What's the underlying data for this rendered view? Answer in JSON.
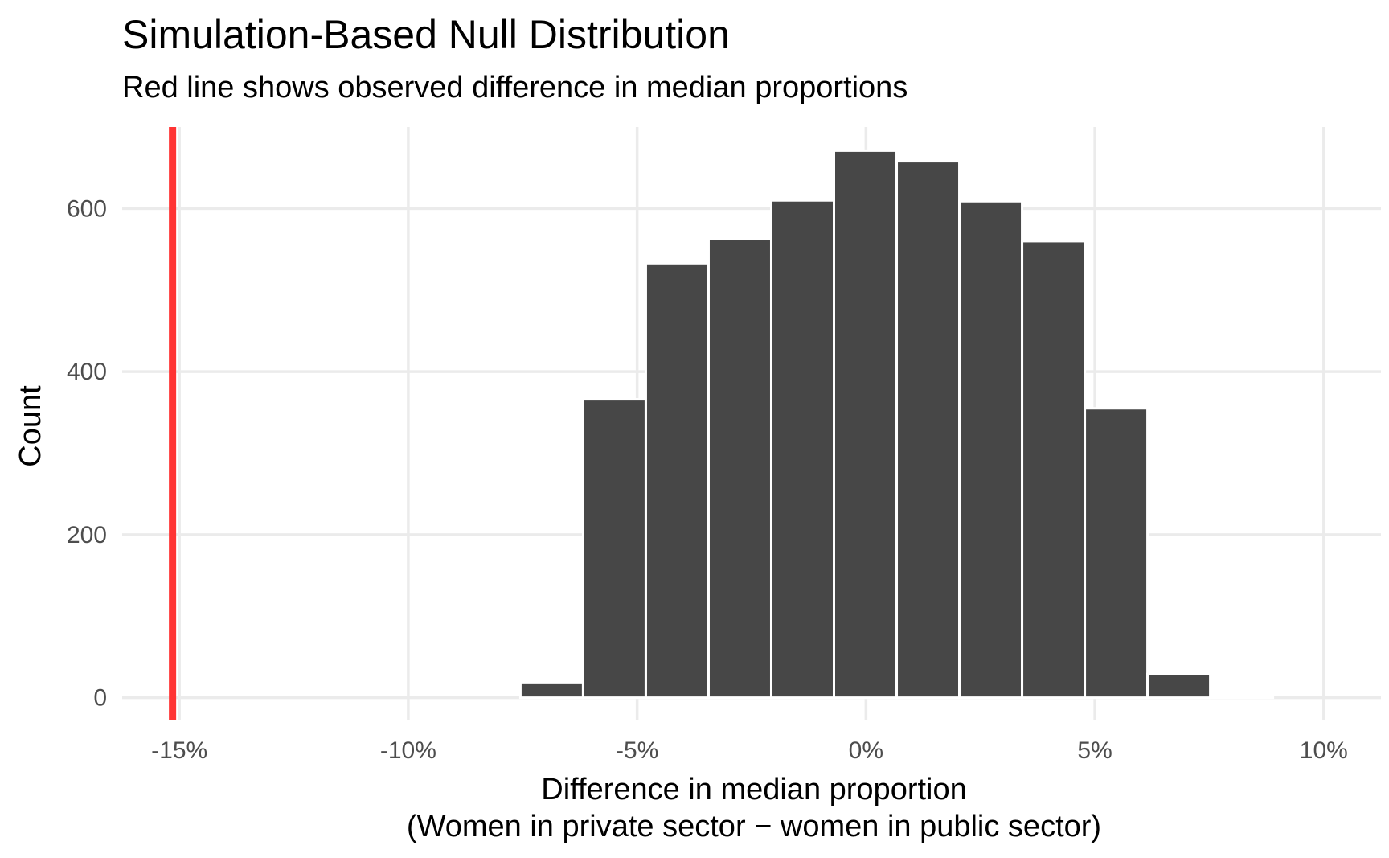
{
  "chart_data": {
    "type": "bar",
    "title": "Simulation-Based Null Distribution",
    "subtitle": "Red line shows observed difference in median proportions",
    "xlabel": "Difference in median proportion",
    "xlabel_line2": "(Women in private sector − women in public sector)",
    "ylabel": "Count",
    "xlim": [
      -0.1625,
      0.1125
    ],
    "ylim": [
      -28,
      700
    ],
    "x_ticks": [
      {
        "value": -0.15,
        "label": "-15%"
      },
      {
        "value": -0.1,
        "label": "-10%"
      },
      {
        "value": -0.05,
        "label": "-5%"
      },
      {
        "value": 0.0,
        "label": "0%"
      },
      {
        "value": 0.05,
        "label": "5%"
      },
      {
        "value": 0.1,
        "label": "10%"
      }
    ],
    "y_ticks": [
      {
        "value": 0,
        "label": "0"
      },
      {
        "value": 200,
        "label": "200"
      },
      {
        "value": 400,
        "label": "400"
      },
      {
        "value": 600,
        "label": "600"
      }
    ],
    "grid": true,
    "bars": [
      {
        "x0": -0.0755,
        "x1": -0.0618,
        "count": 19
      },
      {
        "x0": -0.0618,
        "x1": -0.0481,
        "count": 366
      },
      {
        "x0": -0.0481,
        "x1": -0.0344,
        "count": 533
      },
      {
        "x0": -0.0344,
        "x1": -0.0207,
        "count": 563
      },
      {
        "x0": -0.0207,
        "x1": -0.007,
        "count": 610
      },
      {
        "x0": -0.007,
        "x1": 0.0067,
        "count": 671
      },
      {
        "x0": 0.0067,
        "x1": 0.0204,
        "count": 658
      },
      {
        "x0": 0.0204,
        "x1": 0.0341,
        "count": 609
      },
      {
        "x0": 0.0341,
        "x1": 0.0478,
        "count": 560
      },
      {
        "x0": 0.0478,
        "x1": 0.0615,
        "count": 355
      },
      {
        "x0": 0.0615,
        "x1": 0.0752,
        "count": 29
      },
      {
        "x0": 0.0752,
        "x1": 0.0889,
        "count": 1
      }
    ],
    "observed_difference": -0.1515,
    "colors": {
      "bar_fill": "#474747",
      "bar_stroke": "#ffffff",
      "observed_line": "#ff3333",
      "grid": "#ebebeb"
    }
  }
}
